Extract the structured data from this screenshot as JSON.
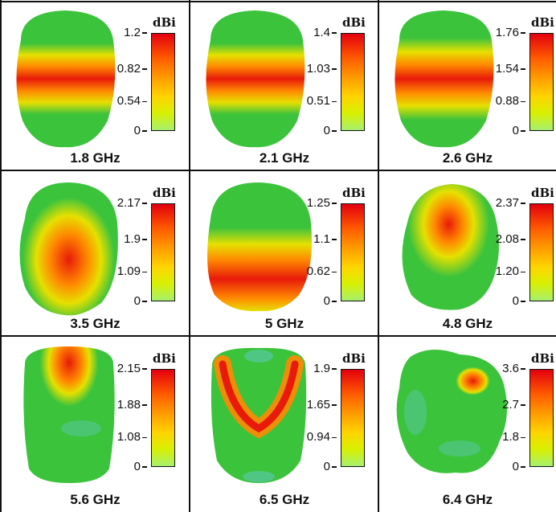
{
  "unit_label": "dBi",
  "panels": [
    {
      "freq": "1.8 GHz",
      "ticks": [
        "1.2",
        "0.82",
        "0.54",
        "0"
      ],
      "pattern": "band"
    },
    {
      "freq": "2.1 GHz",
      "ticks": [
        "1.4",
        "1.03",
        "0.51",
        "0"
      ],
      "pattern": "band"
    },
    {
      "freq": "2.6 GHz",
      "ticks": [
        "1.76",
        "1.54",
        "0.88",
        "0"
      ],
      "pattern": "band-wide"
    },
    {
      "freq": "3.5 GHz",
      "ticks": [
        "2.17",
        "1.9",
        "1.09",
        "0"
      ],
      "pattern": "blob"
    },
    {
      "freq": "5 GHz",
      "ticks": [
        "1.25",
        "1.1",
        "0.62",
        "0"
      ],
      "pattern": "low-band"
    },
    {
      "freq": "4.8 GHz",
      "ticks": [
        "2.37",
        "2.08",
        "1.20",
        "0"
      ],
      "pattern": "tilted"
    },
    {
      "freq": "5.6 GHz",
      "ticks": [
        "2.15",
        "1.88",
        "1.08",
        "0"
      ],
      "pattern": "top-lobe"
    },
    {
      "freq": "6.5 GHz",
      "ticks": [
        "1.9",
        "1.65",
        "0.94",
        "0"
      ],
      "pattern": "u-shape"
    },
    {
      "freq": "6.4 GHz",
      "ticks": [
        "3.6",
        "2.7",
        "1.8",
        "0"
      ],
      "pattern": "clover"
    }
  ],
  "colors": {
    "green": "#3cc33c",
    "yellow": "#e6e000",
    "orange": "#ff8a00",
    "red": "#e81a0a",
    "cyan": "#5ec8b4"
  }
}
